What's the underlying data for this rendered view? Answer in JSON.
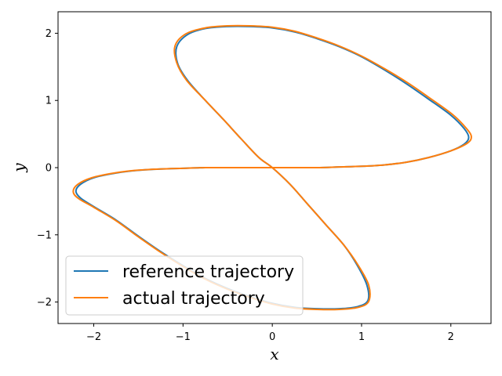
{
  "chart_data": {
    "type": "line",
    "title": "",
    "xlabel": "x",
    "ylabel": "y",
    "xlim": [
      -2.4,
      2.45
    ],
    "ylim": [
      -2.32,
      2.32
    ],
    "xticks": [
      -2,
      -1,
      0,
      1,
      2
    ],
    "yticks": [
      -2,
      -1,
      0,
      1,
      2
    ],
    "xtick_labels": [
      "−2",
      "−1",
      "0",
      "1",
      "2"
    ],
    "ytick_labels": [
      "−2",
      "−1",
      "0",
      "1",
      "2"
    ],
    "grid": false,
    "legend_position": "lower-left",
    "series": [
      {
        "name": "reference trajectory",
        "color": "#1f77b4",
        "x": [
          0,
          0.25,
          0.5,
          0.75,
          1.0,
          1.25,
          1.5,
          1.75,
          2.0,
          2.15,
          2.2,
          2.15,
          2.0,
          1.75,
          1.5,
          1.25,
          1.0,
          0.75,
          0.5,
          0.25,
          0,
          -0.25,
          -0.5,
          -0.75,
          -0.95,
          -1.07,
          -1.06,
          -0.95,
          -0.75,
          -0.55,
          -0.35,
          -0.15,
          0,
          0.2,
          0.4,
          0.6,
          0.8,
          0.95,
          1.06,
          1.07,
          0.95,
          0.75,
          0.5,
          0.25,
          0,
          -0.25,
          -0.5,
          -0.75,
          -1.0,
          -1.25,
          -1.5,
          -1.75,
          -2.0,
          -2.15,
          -2.2,
          -2.15,
          -2.0,
          -1.75,
          -1.5,
          -1.25,
          -1.0,
          -0.75,
          -0.5,
          -0.25,
          0
        ],
        "y": [
          0,
          0.0,
          0.0,
          0.01,
          0.02,
          0.04,
          0.08,
          0.15,
          0.25,
          0.35,
          0.45,
          0.58,
          0.78,
          1.02,
          1.25,
          1.46,
          1.65,
          1.8,
          1.92,
          2.02,
          2.08,
          2.1,
          2.1,
          2.07,
          1.98,
          1.8,
          1.55,
          1.3,
          1.0,
          0.72,
          0.43,
          0.15,
          0,
          -0.25,
          -0.55,
          -0.85,
          -1.15,
          -1.45,
          -1.75,
          -1.98,
          -2.07,
          -2.1,
          -2.1,
          -2.08,
          -2.02,
          -1.92,
          -1.8,
          -1.65,
          -1.46,
          -1.25,
          -1.02,
          -0.78,
          -0.58,
          -0.45,
          -0.35,
          -0.25,
          -0.15,
          -0.08,
          -0.04,
          -0.02,
          -0.01,
          0.0,
          0.0,
          0.0,
          0
        ]
      },
      {
        "name": "actual trajectory",
        "color": "#ff7f0e",
        "x": [
          0,
          0.25,
          0.5,
          0.75,
          1.0,
          1.25,
          1.5,
          1.75,
          2.0,
          2.18,
          2.23,
          2.17,
          2.02,
          1.77,
          1.52,
          1.26,
          1.0,
          0.75,
          0.5,
          0.25,
          0,
          -0.25,
          -0.5,
          -0.75,
          -0.97,
          -1.09,
          -1.07,
          -0.96,
          -0.75,
          -0.55,
          -0.35,
          -0.15,
          0,
          0.2,
          0.4,
          0.6,
          0.8,
          0.96,
          1.08,
          1.08,
          0.96,
          0.75,
          0.5,
          0.25,
          0,
          -0.25,
          -0.5,
          -0.75,
          -1.0,
          -1.25,
          -1.5,
          -1.75,
          -2.0,
          -2.17,
          -2.23,
          -2.18,
          -2.02,
          -1.77,
          -1.52,
          -1.26,
          -1.0,
          -0.75,
          -0.5,
          -0.25,
          0
        ],
        "y": [
          0,
          0.0,
          0.0,
          0.01,
          0.02,
          0.04,
          0.08,
          0.15,
          0.25,
          0.36,
          0.46,
          0.59,
          0.79,
          1.03,
          1.26,
          1.47,
          1.66,
          1.81,
          1.93,
          2.03,
          2.09,
          2.11,
          2.11,
          2.08,
          1.99,
          1.81,
          1.56,
          1.3,
          1.0,
          0.72,
          0.43,
          0.15,
          0,
          -0.25,
          -0.55,
          -0.85,
          -1.15,
          -1.45,
          -1.75,
          -1.99,
          -2.08,
          -2.11,
          -2.11,
          -2.09,
          -2.03,
          -1.93,
          -1.81,
          -1.66,
          -1.47,
          -1.26,
          -1.03,
          -0.79,
          -0.59,
          -0.46,
          -0.36,
          -0.25,
          -0.15,
          -0.08,
          -0.04,
          -0.02,
          -0.01,
          0.0,
          0.0,
          0.0,
          0
        ]
      }
    ]
  }
}
